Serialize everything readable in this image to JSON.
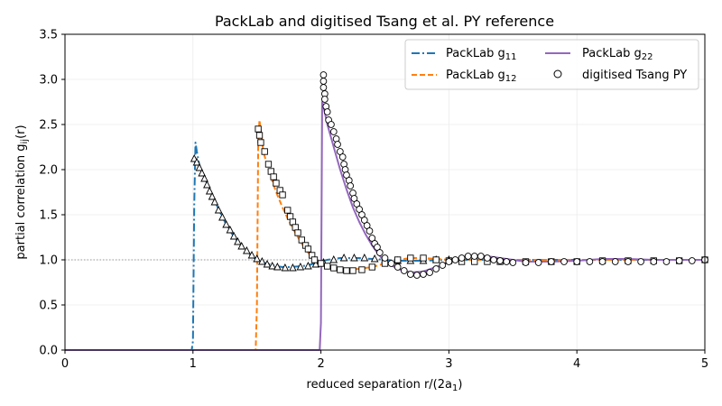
{
  "chart_data": {
    "type": "line",
    "title": "PackLab and digitised Tsang et al. PY reference",
    "xlabel": "reduced separation r/(2a",
    "xlabel_sub": "1",
    "xlabel_close": ")",
    "ylabel": "partial correlation g",
    "ylabel_sub": "ij",
    "ylabel_close": "(r)",
    "xlim": [
      0,
      5
    ],
    "ylim": [
      0,
      3.5
    ],
    "xticks": [
      "0",
      "1",
      "2",
      "3",
      "4",
      "5"
    ],
    "xtick_values": [
      0,
      1,
      2,
      3,
      4,
      5
    ],
    "yticks": [
      "0.0",
      "0.5",
      "1.0",
      "1.5",
      "2.0",
      "2.5",
      "3.0",
      "3.5"
    ],
    "ytick_values": [
      0,
      0.5,
      1,
      1.5,
      2,
      2.5,
      3,
      3.5
    ],
    "grid": true,
    "reference_line": 1.0,
    "legend_position": "top-right",
    "series": [
      {
        "name": "PackLab g",
        "sub": "11",
        "color": "#1f77b4",
        "style": "dashdot",
        "x": [
          0,
          0.98,
          0.99,
          1.0,
          1.01,
          1.02,
          1.03,
          1.05,
          1.1,
          1.15,
          1.2,
          1.25,
          1.3,
          1.35,
          1.4,
          1.45,
          1.5,
          1.55,
          1.6,
          1.65,
          1.7,
          1.75,
          1.8,
          1.85,
          1.9,
          1.95,
          2.0,
          2.05,
          2.1,
          2.15,
          2.2,
          2.3,
          2.4,
          2.5,
          2.6,
          2.7,
          2.8,
          2.9,
          3.0,
          3.2,
          3.5,
          4.0,
          4.5,
          5.0
        ],
        "y": [
          0,
          0,
          0,
          0.1,
          1.6,
          2.3,
          2.2,
          2.05,
          1.88,
          1.72,
          1.56,
          1.42,
          1.3,
          1.2,
          1.12,
          1.05,
          1.0,
          0.97,
          0.95,
          0.93,
          0.92,
          0.92,
          0.925,
          0.93,
          0.94,
          0.96,
          0.98,
          1.0,
          1.01,
          1.02,
          1.02,
          1.02,
          1.01,
          1.0,
          0.99,
          0.99,
          0.99,
          0.995,
          1.0,
          1.0,
          1.0,
          1.0,
          1.0,
          1.0
        ]
      },
      {
        "name": "PackLab g",
        "sub": "12",
        "color": "#ff7f0e",
        "style": "dashed",
        "x": [
          0,
          1.49,
          1.5,
          1.51,
          1.52,
          1.55,
          1.6,
          1.65,
          1.7,
          1.75,
          1.8,
          1.85,
          1.9,
          1.95,
          2.0,
          2.05,
          2.1,
          2.2,
          2.3,
          2.4,
          2.5,
          2.6,
          2.7,
          2.8,
          2.9,
          3.0,
          3.2,
          3.5,
          4.0,
          4.5,
          5.0
        ],
        "y": [
          0,
          0,
          0.5,
          2.3,
          2.55,
          2.2,
          1.95,
          1.75,
          1.58,
          1.43,
          1.3,
          1.18,
          1.08,
          1.0,
          0.95,
          0.92,
          0.9,
          0.89,
          0.9,
          0.92,
          0.96,
          1.0,
          1.02,
          1.02,
          1.01,
          1.0,
          1.0,
          1.0,
          1.0,
          1.0,
          1.0
        ]
      },
      {
        "name": "PackLab g",
        "sub": "22",
        "color": "#9467bd",
        "style": "solid",
        "x": [
          0,
          1.99,
          2.0,
          2.01,
          2.02,
          2.05,
          2.1,
          2.15,
          2.2,
          2.25,
          2.3,
          2.35,
          2.4,
          2.45,
          2.5,
          2.6,
          2.7,
          2.8,
          2.9,
          3.0,
          3.1,
          3.2,
          3.3,
          3.4,
          3.5,
          3.6,
          3.8,
          4.0,
          4.2,
          4.4,
          4.6,
          5.0
        ],
        "y": [
          0,
          0,
          0.3,
          2.75,
          2.7,
          2.5,
          2.25,
          2.0,
          1.78,
          1.58,
          1.42,
          1.28,
          1.16,
          1.06,
          0.98,
          0.9,
          0.86,
          0.87,
          0.92,
          0.98,
          1.03,
          1.05,
          1.04,
          1.02,
          1.0,
          0.98,
          0.98,
          0.99,
          1.01,
          1.01,
          1.0,
          1.0
        ]
      }
    ],
    "reference": {
      "name": "digitised Tsang PY",
      "color": "#000000",
      "triangles": {
        "x": [
          1.01,
          1.03,
          1.05,
          1.07,
          1.09,
          1.11,
          1.13,
          1.15,
          1.17,
          1.2,
          1.23,
          1.26,
          1.29,
          1.32,
          1.35,
          1.38,
          1.42,
          1.46,
          1.5,
          1.54,
          1.58,
          1.62,
          1.66,
          1.72,
          1.78,
          1.84,
          1.9,
          1.96,
          2.02,
          2.1,
          2.18,
          2.26,
          2.34,
          2.42,
          2.5,
          2.6,
          2.7,
          2.8,
          2.9,
          3.0
        ],
        "y": [
          2.12,
          2.08,
          2.02,
          1.96,
          1.9,
          1.83,
          1.76,
          1.7,
          1.64,
          1.55,
          1.47,
          1.39,
          1.33,
          1.26,
          1.2,
          1.15,
          1.1,
          1.05,
          1.01,
          0.98,
          0.95,
          0.93,
          0.92,
          0.91,
          0.91,
          0.92,
          0.93,
          0.95,
          0.97,
          1.0,
          1.02,
          1.02,
          1.02,
          1.01,
          1.0,
          0.99,
          0.99,
          0.99,
          1.0,
          1.0
        ]
      },
      "squares": {
        "x": [
          1.51,
          1.52,
          1.53,
          1.56,
          1.59,
          1.61,
          1.63,
          1.65,
          1.68,
          1.7,
          1.74,
          1.76,
          1.78,
          1.8,
          1.82,
          1.85,
          1.88,
          1.9,
          1.93,
          1.95,
          2.0,
          2.05,
          2.1,
          2.15,
          2.2,
          2.25,
          2.32,
          2.4,
          2.5,
          2.6,
          2.7,
          2.8,
          2.9,
          3.0,
          3.1,
          3.2,
          3.3,
          3.4,
          3.6,
          3.8,
          4.0,
          4.2,
          4.4,
          4.6,
          4.8,
          5.0
        ],
        "y": [
          2.45,
          2.38,
          2.3,
          2.2,
          2.06,
          1.98,
          1.92,
          1.85,
          1.77,
          1.72,
          1.55,
          1.48,
          1.42,
          1.36,
          1.3,
          1.22,
          1.16,
          1.12,
          1.05,
          1.0,
          0.96,
          0.93,
          0.91,
          0.89,
          0.88,
          0.88,
          0.89,
          0.92,
          0.96,
          1.0,
          1.02,
          1.02,
          1.0,
          0.99,
          0.98,
          0.98,
          0.98,
          0.98,
          0.98,
          0.98,
          0.98,
          0.99,
          0.99,
          0.99,
          0.99,
          1.0
        ]
      },
      "circles": {
        "x": [
          2.02,
          2.02,
          2.02,
          2.03,
          2.03,
          2.04,
          2.05,
          2.06,
          2.08,
          2.1,
          2.12,
          2.13,
          2.15,
          2.17,
          2.18,
          2.19,
          2.2,
          2.22,
          2.23,
          2.25,
          2.26,
          2.28,
          2.3,
          2.32,
          2.34,
          2.36,
          2.38,
          2.4,
          2.42,
          2.44,
          2.46,
          2.5,
          2.55,
          2.6,
          2.65,
          2.7,
          2.75,
          2.8,
          2.85,
          2.9,
          2.95,
          3.0,
          3.05,
          3.1,
          3.15,
          3.2,
          3.25,
          3.3,
          3.35,
          3.4,
          3.45,
          3.5,
          3.6,
          3.7,
          3.8,
          3.9,
          4.0,
          4.1,
          4.2,
          4.3,
          4.4,
          4.5,
          4.6,
          4.7,
          4.8,
          4.9,
          5.0
        ],
        "y": [
          3.05,
          2.98,
          2.91,
          2.84,
          2.78,
          2.7,
          2.64,
          2.55,
          2.5,
          2.42,
          2.34,
          2.28,
          2.2,
          2.14,
          2.06,
          2.0,
          1.94,
          1.88,
          1.82,
          1.74,
          1.68,
          1.62,
          1.56,
          1.5,
          1.44,
          1.38,
          1.32,
          1.24,
          1.18,
          1.14,
          1.08,
          1.02,
          0.96,
          0.92,
          0.88,
          0.84,
          0.83,
          0.84,
          0.86,
          0.9,
          0.94,
          0.98,
          1.0,
          1.02,
          1.04,
          1.04,
          1.04,
          1.02,
          1.0,
          0.99,
          0.98,
          0.97,
          0.97,
          0.97,
          0.98,
          0.98,
          0.98,
          0.98,
          0.98,
          0.98,
          0.98,
          0.98,
          0.98,
          0.98,
          0.99,
          0.99,
          1.0
        ]
      }
    }
  }
}
